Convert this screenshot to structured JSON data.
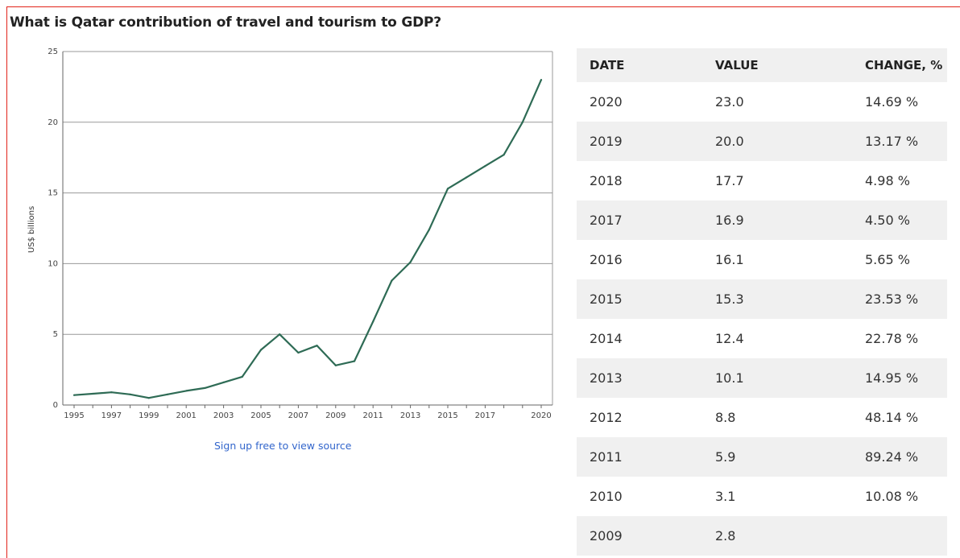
{
  "title": "What is Qatar contribution of travel and tourism to GDP?",
  "source_link": "Sign up free to view source",
  "chart_data": {
    "type": "line",
    "title": "What is Qatar contribution of travel and tourism to GDP?",
    "xlabel": "",
    "ylabel": "US$ billions",
    "ylim": [
      0,
      25
    ],
    "yticks": [
      0,
      5,
      10,
      15,
      20,
      25
    ],
    "xlim": [
      1995,
      2020
    ],
    "xtick_labels": [
      "1995",
      "1997",
      "1999",
      "2001",
      "2003",
      "2005",
      "2007",
      "2009",
      "2011",
      "2013",
      "2015",
      "2017",
      "2020"
    ],
    "grid": true,
    "line_color": "#2e6b55",
    "x": [
      1995,
      1996,
      1997,
      1998,
      1999,
      2000,
      2001,
      2002,
      2003,
      2004,
      2005,
      2006,
      2007,
      2008,
      2009,
      2010,
      2011,
      2012,
      2013,
      2014,
      2015,
      2016,
      2017,
      2018,
      2019,
      2020
    ],
    "y": [
      0.7,
      0.8,
      0.9,
      0.75,
      0.5,
      0.75,
      1.0,
      1.2,
      1.6,
      2.0,
      3.9,
      5.0,
      3.7,
      4.2,
      2.8,
      3.1,
      5.9,
      8.8,
      10.1,
      12.4,
      15.3,
      16.1,
      16.9,
      17.7,
      20.0,
      23.0
    ]
  },
  "table": {
    "headers": [
      "DATE",
      "VALUE",
      "CHANGE, %"
    ],
    "rows": [
      [
        "2020",
        "23.0",
        "14.69 %"
      ],
      [
        "2019",
        "20.0",
        "13.17 %"
      ],
      [
        "2018",
        "17.7",
        "4.98 %"
      ],
      [
        "2017",
        "16.9",
        "4.50 %"
      ],
      [
        "2016",
        "16.1",
        "5.65 %"
      ],
      [
        "2015",
        "15.3",
        "23.53 %"
      ],
      [
        "2014",
        "12.4",
        "22.78 %"
      ],
      [
        "2013",
        "10.1",
        "14.95 %"
      ],
      [
        "2012",
        "8.8",
        "48.14 %"
      ],
      [
        "2011",
        "5.9",
        "89.24 %"
      ],
      [
        "2010",
        "3.1",
        "10.08 %"
      ],
      [
        "2009",
        "2.8",
        ""
      ]
    ]
  }
}
